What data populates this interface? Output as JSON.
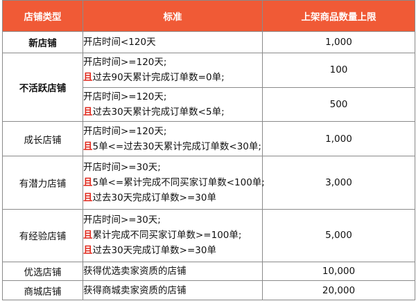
{
  "header": {
    "col_type": "店铺类型",
    "col_standard": "标准",
    "col_limit": "上架商品数量上限"
  },
  "and_label": "且",
  "rows": {
    "new": {
      "type": "新店铺",
      "standard": "开店时间<120天",
      "limit": "1,000"
    },
    "inactive": {
      "type": "不活跃店铺",
      "sub1": {
        "line1": "开店时间>=120天;",
        "line2": "过去90天累计完成订单数=0单;",
        "limit": "100"
      },
      "sub2": {
        "line1": "开店时间>=120天;",
        "line2": "过去30天累计完成订单数<5单;",
        "limit": "500"
      }
    },
    "growth": {
      "type": "成长店铺",
      "line1": "开店时间>=120天;",
      "line2": "5单<=过去30天累计完成订单数<30单;",
      "limit": "1,000"
    },
    "potential": {
      "type": "有潜力店铺",
      "line1": "开店时间>=30天;",
      "line2": "5单<=累计完成不同买家订单数<100单;",
      "line3": "过去30天完成订单数>=30单",
      "limit": "3,000"
    },
    "experienced": {
      "type": "有经验店铺",
      "line1": "开店时间>=30天;",
      "line2": "累计完成不同买家订单数>=100单;",
      "line3": "过去30天完成订单数>=30单",
      "limit": "5,000"
    },
    "selected": {
      "type": "优选店铺",
      "standard": "获得优选卖家资质的店铺",
      "limit": "10,000"
    },
    "mall": {
      "type": "商城店铺",
      "standard": "获得商城卖家资质的店铺",
      "limit": "20,000"
    }
  },
  "colors": {
    "header_bg": "#f05a36",
    "header_text": "#ffffff",
    "and_text": "#e0281c",
    "border": "#8a8a8a"
  }
}
